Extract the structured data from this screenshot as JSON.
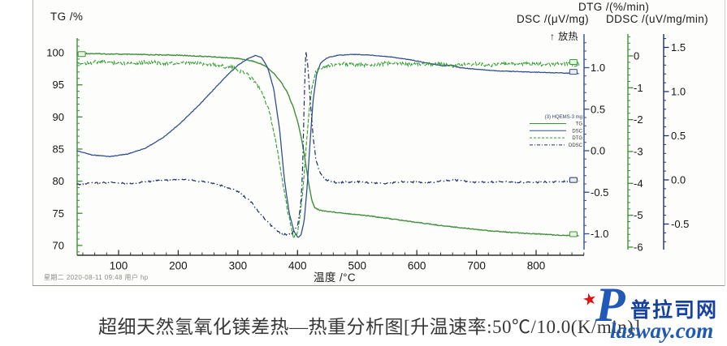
{
  "page": {
    "caption": "超细天然氢氧化镁差热—热重分析图[升温速率:50℃/10.0(K/min)]",
    "footer": "星期二 2020-08-11 09:48 用户 hp",
    "watermark": {
      "star": "★",
      "initial": "P",
      "cn": "普拉司网",
      "en": "lasway.com"
    }
  },
  "chart_data": {
    "type": "line",
    "title": "超细天然氢氧化镁差热—热重分析图",
    "exo_label": "↑ 放热",
    "axes": {
      "x": {
        "title": "温度 /°C",
        "range": [
          30,
          880
        ],
        "minor_step": 20,
        "tick_values": [
          100,
          200,
          300,
          400,
          500,
          600,
          700,
          800
        ],
        "tick_labels": [
          "100",
          "200",
          "300",
          "400",
          "500",
          "600",
          "700",
          "800"
        ]
      },
      "tg": {
        "title": "TG /%",
        "range": [
          68.7,
          102.2
        ],
        "minor_step": 1,
        "color": "#3f8f3a",
        "tick_values": [
          100,
          95,
          90,
          85,
          80,
          75,
          70
        ],
        "tick_labels": [
          "100",
          "95",
          "90",
          "85",
          "80",
          "75",
          "70"
        ]
      },
      "dsc": {
        "title": "DSC /(μV/mg)",
        "range": [
          -1.15,
          1.38
        ],
        "minor_step": 0.1,
        "color": "#31508f",
        "tick_values": [
          1.0,
          0.5,
          0.0,
          -0.5,
          -1.0
        ],
        "tick_labels": [
          "1.0",
          "0.5",
          "0.0",
          "-0.5",
          "-1.0"
        ]
      },
      "dtg": {
        "title": "DTG /(%/min)",
        "range": [
          -6.05,
          0.65
        ],
        "minor_step": 0.2,
        "color": "#3f8f3a",
        "tick_values": [
          0,
          -1,
          -2,
          -3,
          -4,
          -5,
          -6
        ],
        "tick_labels": [
          "0",
          "-1",
          "-2",
          "-3",
          "-4",
          "-5",
          "-6"
        ]
      },
      "ddsc": {
        "title": "DDSC /(uV/mg/min)",
        "range": [
          -0.77,
          1.62
        ],
        "minor_step": 0.1,
        "color": "#1e2f66",
        "tick_values": [
          1.5,
          1.0,
          0.5,
          0.0,
          -0.5
        ],
        "tick_labels": [
          "1.5",
          "1.0",
          "0.5",
          "0.0",
          "-0.5"
        ]
      }
    },
    "legend": {
      "title": "(3) HQEMS-3 mg",
      "entries": [
        {
          "label": "TG",
          "series": "TG"
        },
        {
          "label": "DSC",
          "series": "DSC"
        },
        {
          "label": "DTG",
          "series": "DTG"
        },
        {
          "label": "DDSC",
          "series": "DDSC"
        }
      ]
    },
    "series": [
      {
        "name": "TG",
        "axis": "tg",
        "color": "#3f8f3a",
        "dash": "",
        "width": 1.4,
        "noise": 0.5,
        "bias": 0,
        "marker_start": true,
        "marker_end": true,
        "points": [
          [
            30,
            99.9
          ],
          [
            80,
            99.8
          ],
          [
            140,
            99.7
          ],
          [
            200,
            99.6
          ],
          [
            250,
            99.4
          ],
          [
            300,
            99.1
          ],
          [
            325,
            98.7
          ],
          [
            345,
            98.0
          ],
          [
            360,
            96.8
          ],
          [
            372,
            95.5
          ],
          [
            383,
            93.8
          ],
          [
            393,
            91.5
          ],
          [
            401,
            89.0
          ],
          [
            408,
            86.0
          ],
          [
            414,
            82.5
          ],
          [
            419,
            79.5
          ],
          [
            424,
            77.0
          ],
          [
            429,
            75.9
          ],
          [
            436,
            75.5
          ],
          [
            450,
            75.3
          ],
          [
            480,
            75.0
          ],
          [
            520,
            74.6
          ],
          [
            560,
            74.1
          ],
          [
            600,
            73.6
          ],
          [
            640,
            73.1
          ],
          [
            680,
            72.7
          ],
          [
            720,
            72.3
          ],
          [
            760,
            72.0
          ],
          [
            800,
            71.8
          ],
          [
            840,
            71.6
          ],
          [
            872,
            71.5
          ]
        ]
      },
      {
        "name": "DSC",
        "axis": "dsc",
        "color": "#31508f",
        "dash": "",
        "width": 1.3,
        "noise": 0.35,
        "bias": 0,
        "marker_start": false,
        "marker_end": true,
        "points": [
          [
            30,
            0.0
          ],
          [
            55,
            -0.05
          ],
          [
            85,
            -0.07
          ],
          [
            115,
            -0.04
          ],
          [
            145,
            0.03
          ],
          [
            175,
            0.16
          ],
          [
            205,
            0.34
          ],
          [
            235,
            0.55
          ],
          [
            265,
            0.78
          ],
          [
            285,
            0.93
          ],
          [
            300,
            1.03
          ],
          [
            315,
            1.1
          ],
          [
            330,
            1.15
          ],
          [
            340,
            1.12
          ],
          [
            350,
            1.0
          ],
          [
            360,
            0.75
          ],
          [
            370,
            0.25
          ],
          [
            378,
            -0.35
          ],
          [
            386,
            -0.75
          ],
          [
            394,
            -0.97
          ],
          [
            401,
            -1.05
          ],
          [
            406,
            -1.01
          ],
          [
            411,
            -0.85
          ],
          [
            416,
            -0.45
          ],
          [
            421,
            0.1
          ],
          [
            426,
            0.6
          ],
          [
            432,
            0.92
          ],
          [
            439,
            1.06
          ],
          [
            450,
            1.12
          ],
          [
            468,
            1.15
          ],
          [
            495,
            1.16
          ],
          [
            525,
            1.15
          ],
          [
            555,
            1.13
          ],
          [
            585,
            1.1
          ],
          [
            615,
            1.06
          ],
          [
            645,
            1.02
          ],
          [
            658,
            1.03
          ],
          [
            672,
            1.0
          ],
          [
            700,
            0.98
          ],
          [
            740,
            0.96
          ],
          [
            780,
            0.95
          ],
          [
            825,
            0.94
          ],
          [
            872,
            0.93
          ]
        ]
      },
      {
        "name": "DTG",
        "axis": "dtg",
        "color": "#2f9e2f",
        "dash": "5 2",
        "width": 1.1,
        "noise": 2.4,
        "bias": 1.2,
        "marker_start": false,
        "marker_end": true,
        "points": [
          [
            30,
            -0.22
          ],
          [
            70,
            -0.15
          ],
          [
            110,
            -0.2
          ],
          [
            150,
            -0.17
          ],
          [
            190,
            -0.21
          ],
          [
            230,
            -0.19
          ],
          [
            265,
            -0.25
          ],
          [
            292,
            -0.35
          ],
          [
            312,
            -0.5
          ],
          [
            328,
            -0.75
          ],
          [
            342,
            -1.15
          ],
          [
            354,
            -1.8
          ],
          [
            364,
            -2.7
          ],
          [
            373,
            -3.7
          ],
          [
            381,
            -4.6
          ],
          [
            388,
            -5.25
          ],
          [
            393,
            -5.65
          ],
          [
            398,
            -5.6
          ],
          [
            403,
            -5.15
          ],
          [
            408,
            -4.35
          ],
          [
            413,
            -3.2
          ],
          [
            418,
            -2.0
          ],
          [
            423,
            -1.1
          ],
          [
            428,
            -0.6
          ],
          [
            435,
            -0.35
          ],
          [
            448,
            -0.27
          ],
          [
            475,
            -0.22
          ],
          [
            515,
            -0.25
          ],
          [
            555,
            -0.2
          ],
          [
            595,
            -0.24
          ],
          [
            635,
            -0.21
          ],
          [
            658,
            -0.3
          ],
          [
            685,
            -0.22
          ],
          [
            725,
            -0.25
          ],
          [
            765,
            -0.21
          ],
          [
            805,
            -0.24
          ],
          [
            840,
            -0.21
          ],
          [
            872,
            -0.24
          ]
        ]
      },
      {
        "name": "DDSC",
        "axis": "ddsc",
        "color": "#1e2f66",
        "dash": "6 3 1.5 3",
        "width": 1.2,
        "noise": 1.0,
        "bias": 0,
        "marker_start": false,
        "marker_end": true,
        "points": [
          [
            30,
            -0.05
          ],
          [
            75,
            -0.03
          ],
          [
            120,
            -0.04
          ],
          [
            165,
            -0.01
          ],
          [
            210,
            0.01
          ],
          [
            245,
            -0.02
          ],
          [
            275,
            -0.07
          ],
          [
            300,
            -0.13
          ],
          [
            322,
            -0.25
          ],
          [
            340,
            -0.4
          ],
          [
            356,
            -0.52
          ],
          [
            370,
            -0.6
          ],
          [
            382,
            -0.62
          ],
          [
            392,
            -0.6
          ],
          [
            400,
            -0.52
          ],
          [
            405,
            -0.3
          ],
          [
            408,
            0.0
          ],
          [
            410,
            0.55
          ],
          [
            412,
            1.1
          ],
          [
            414,
            1.45
          ],
          [
            417,
            1.32
          ],
          [
            421,
            0.92
          ],
          [
            426,
            0.5
          ],
          [
            431,
            0.22
          ],
          [
            438,
            0.07
          ],
          [
            448,
            0.0
          ],
          [
            465,
            -0.03
          ],
          [
            500,
            -0.02
          ],
          [
            540,
            -0.04
          ],
          [
            580,
            -0.02
          ],
          [
            620,
            -0.03
          ],
          [
            660,
            0.0
          ],
          [
            700,
            -0.03
          ],
          [
            745,
            -0.02
          ],
          [
            790,
            -0.03
          ],
          [
            835,
            -0.02
          ],
          [
            872,
            -0.02
          ]
        ]
      }
    ]
  }
}
